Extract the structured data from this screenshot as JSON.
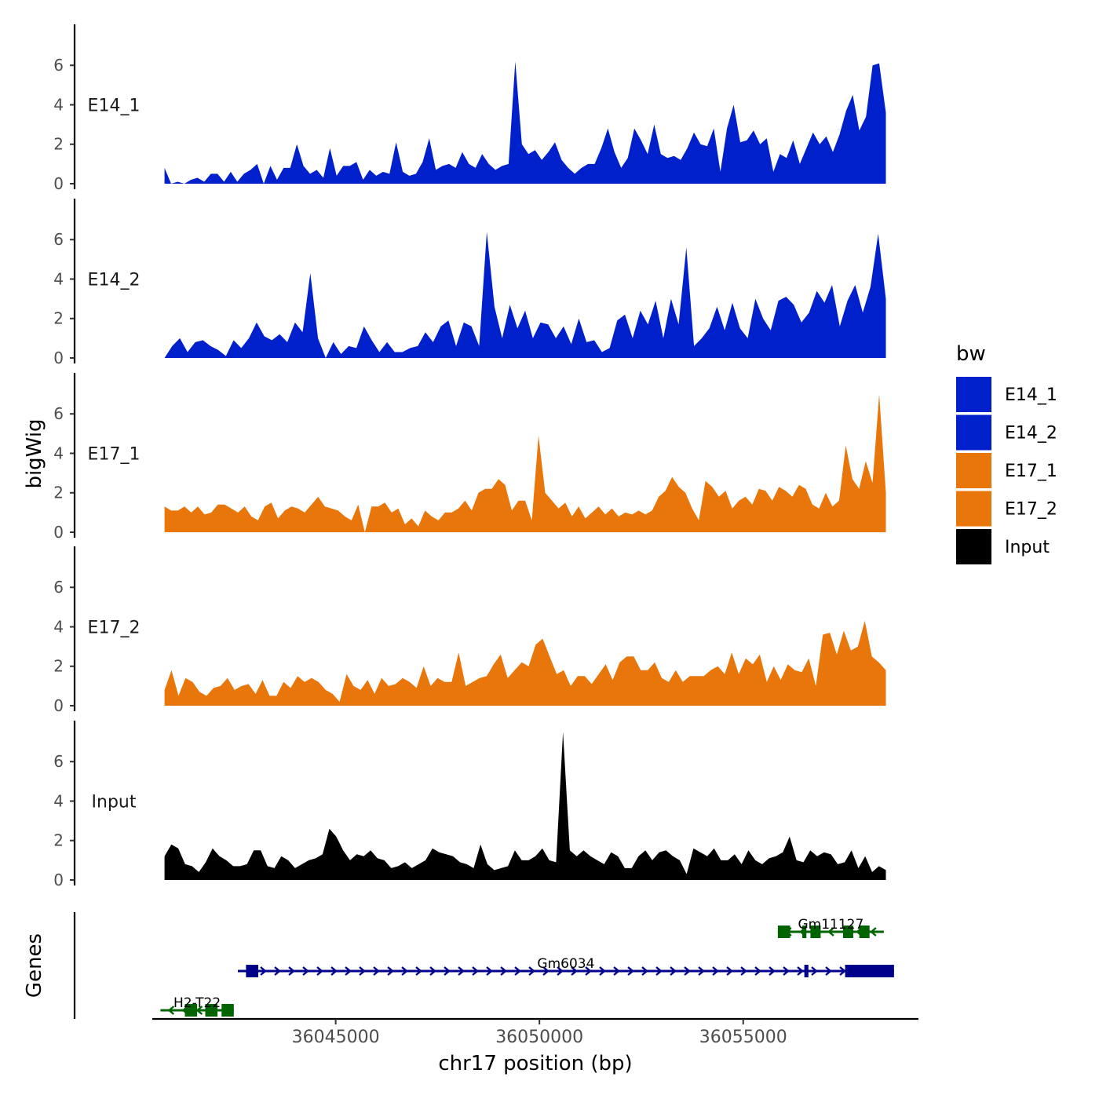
{
  "chart_data": {
    "type": "area",
    "title": "",
    "ylabel": "bigWig",
    "genes_label": "Genes",
    "xlabel": "chr17 position (bp)",
    "chrom": "chr17",
    "xlim": [
      36040500,
      36059300
    ],
    "data_range": [
      36040800,
      36058500
    ],
    "ylim": [
      0,
      7.8
    ],
    "x_ticks": [
      36045000,
      36050000,
      36055000
    ],
    "x_tick_labels": [
      "36045000",
      "36050000",
      "36055000"
    ],
    "y_ticks": [
      0,
      2,
      4,
      6
    ],
    "y_tick_labels": [
      "0",
      "2",
      "4",
      "6"
    ],
    "tracks": [
      {
        "name": "E14_1",
        "color": "#0020cc",
        "values": [
          0.8,
          0,
          0.1,
          0,
          0.2,
          0.3,
          0.1,
          0.5,
          0.5,
          0.1,
          0.6,
          0.1,
          0.5,
          0.7,
          1.0,
          0,
          0.9,
          0.2,
          0.8,
          0.8,
          2.0,
          0.9,
          0.5,
          0.7,
          0.3,
          1.8,
          0.4,
          0.9,
          0.9,
          1.1,
          0.2,
          0.7,
          0.4,
          0.6,
          0.5,
          2.1,
          0.6,
          0.4,
          0.5,
          1.1,
          2.3,
          0.7,
          0.9,
          1.0,
          0.8,
          1.6,
          1.0,
          0.8,
          1.5,
          1.0,
          0.7,
          0.9,
          1.0,
          6.2,
          2.0,
          1.5,
          1.7,
          1.2,
          1.6,
          2.1,
          1.2,
          0.8,
          0.5,
          0.8,
          1.0,
          1.0,
          1.8,
          2.8,
          1.6,
          0.8,
          1.3,
          2.8,
          2.2,
          1.5,
          3.0,
          1.5,
          1.3,
          1.4,
          1.2,
          1.8,
          2.6,
          2.0,
          1.9,
          2.8,
          0.6,
          2.8,
          4.0,
          2.1,
          2.2,
          2.7,
          2.0,
          2.3,
          0.6,
          1.5,
          1.3,
          2.2,
          1.0,
          1.8,
          2.6,
          2.0,
          2.4,
          1.6,
          2.5,
          3.7,
          4.5,
          2.7,
          3.4,
          6.0,
          6.1,
          3.6
        ]
      },
      {
        "name": "E14_2",
        "color": "#0020cc",
        "values": [
          0,
          0.6,
          1.0,
          0.3,
          0.8,
          0.9,
          0.6,
          0.4,
          0.1,
          0.9,
          0.5,
          1.0,
          1.8,
          1.1,
          0.9,
          1.2,
          0.8,
          1.8,
          1.3,
          4.3,
          1.0,
          0,
          0.8,
          0.2,
          0.6,
          0.5,
          1.6,
          0.9,
          0.3,
          0.8,
          0.3,
          0.3,
          0.5,
          0.6,
          1.3,
          0.8,
          1.6,
          1.9,
          0.6,
          1.8,
          1.6,
          0.6,
          6.4,
          2.6,
          1.0,
          2.7,
          1.5,
          2.4,
          1.0,
          1.8,
          1.7,
          1.0,
          1.6,
          0.7,
          2.0,
          0.8,
          0.9,
          0.3,
          0.5,
          1.9,
          2.2,
          1.0,
          2.4,
          1.7,
          2.9,
          1.0,
          3.0,
          1.7,
          5.6,
          0.6,
          1.0,
          1.5,
          2.6,
          1.4,
          2.8,
          1.5,
          1.0,
          3.0,
          2.0,
          1.4,
          2.9,
          3.1,
          2.7,
          1.8,
          2.3,
          3.4,
          2.8,
          3.7,
          1.6,
          2.9,
          3.7,
          2.3,
          3.6,
          6.3,
          3.0
        ]
      },
      {
        "name": "E17_1",
        "color": "#e8760a",
        "values": [
          1.3,
          1.1,
          1.1,
          1.3,
          1.0,
          1.3,
          0.9,
          1.0,
          1.4,
          1.4,
          1.2,
          1.0,
          1.3,
          0.8,
          0.6,
          1.3,
          1.5,
          0.7,
          1.1,
          1.3,
          1.2,
          1.0,
          1.4,
          1.8,
          1.3,
          1.2,
          1.1,
          0.8,
          0.6,
          1.4,
          0,
          1.3,
          1.3,
          1.5,
          1.0,
          1.2,
          0.4,
          0.7,
          0.3,
          1.1,
          0.8,
          0.6,
          1.0,
          1.0,
          1.2,
          1.6,
          1.1,
          2.0,
          2.2,
          2.2,
          2.7,
          2.4,
          1.1,
          1.6,
          1.6,
          0.6,
          4.9,
          2.0,
          1.6,
          1.2,
          1.5,
          0.8,
          1.3,
          0.7,
          1.0,
          1.3,
          0.9,
          1.2,
          0.8,
          1.0,
          0.9,
          1.1,
          0.9,
          1.1,
          1.8,
          2.1,
          2.8,
          2.3,
          2.0,
          1.2,
          0.6,
          2.6,
          2.3,
          1.8,
          2.1,
          1.2,
          1.6,
          1.8,
          1.4,
          2.2,
          2.1,
          1.6,
          2.3,
          2.1,
          1.8,
          2.4,
          2.2,
          1.4,
          1.2,
          2.0,
          1.3,
          1.6,
          4.4,
          2.7,
          2.2,
          3.6,
          2.5,
          7.0,
          2.0
        ]
      },
      {
        "name": "E17_2",
        "color": "#e8760a",
        "values": [
          0.8,
          1.8,
          0.5,
          1.4,
          1.2,
          0.7,
          0.5,
          0.9,
          1.0,
          1.4,
          0.8,
          1.0,
          1.1,
          0.6,
          1.3,
          0.5,
          0.5,
          1.2,
          0.9,
          1.5,
          1.2,
          1.4,
          1.2,
          0.8,
          0.6,
          0.2,
          1.6,
          1.0,
          0.8,
          1.3,
          0.6,
          1.4,
          1.0,
          1.1,
          1.4,
          1.2,
          0.9,
          2.0,
          1.0,
          1.4,
          1.2,
          1.2,
          2.7,
          1.0,
          1.2,
          1.4,
          1.5,
          2.1,
          2.6,
          1.4,
          1.8,
          2.2,
          2.0,
          3.1,
          3.4,
          2.5,
          1.6,
          1.8,
          1.0,
          1.5,
          1.5,
          1.1,
          1.6,
          2.1,
          1.3,
          2.2,
          2.5,
          2.5,
          1.8,
          1.8,
          2.2,
          1.4,
          1.2,
          1.8,
          1.2,
          1.5,
          1.5,
          1.5,
          1.8,
          2.0,
          1.6,
          2.7,
          1.6,
          2.4,
          2.1,
          2.6,
          1.2,
          2.0,
          1.3,
          2.1,
          1.8,
          1.7,
          2.4,
          1.0,
          3.6,
          3.7,
          2.6,
          3.8,
          2.8,
          3.0,
          4.3,
          2.5,
          2.2,
          1.8
        ]
      },
      {
        "name": "Input",
        "color": "#000000",
        "values": [
          1.2,
          1.8,
          1.6,
          0.8,
          0.7,
          0.4,
          0.9,
          1.6,
          1.2,
          1.0,
          0.7,
          0.7,
          0.8,
          1.5,
          1.5,
          0.7,
          0.6,
          1.2,
          1.0,
          0.6,
          0.8,
          1.0,
          1.1,
          1.3,
          2.6,
          2.2,
          1.5,
          1.0,
          1.3,
          1.2,
          1.5,
          1.1,
          1.0,
          0.6,
          0.7,
          0.9,
          0.6,
          0.8,
          1.0,
          1.6,
          1.4,
          1.3,
          1.2,
          0.9,
          0.8,
          0.6,
          1.8,
          0.8,
          0.5,
          0.6,
          0.7,
          1.5,
          1.0,
          1.0,
          1.2,
          1.6,
          1.0,
          0.9,
          7.5,
          1.5,
          1.2,
          1.5,
          1.2,
          1.0,
          0.8,
          1.4,
          1.2,
          0.6,
          0.6,
          1.2,
          1.5,
          1.0,
          1.4,
          1.5,
          1.2,
          1.0,
          0.3,
          1.6,
          1.4,
          1.2,
          1.6,
          1.0,
          1.0,
          1.3,
          0.8,
          1.5,
          1.0,
          0.8,
          1.1,
          1.2,
          1.4,
          2.2,
          1.0,
          0.9,
          1.5,
          1.2,
          1.4,
          1.3,
          0.8,
          0.9,
          1.5,
          0.6,
          1.2,
          0.4,
          0.7,
          0.5
        ]
      }
    ],
    "legend": {
      "title": "bw",
      "position": "right",
      "entries": [
        {
          "label": "E14_1",
          "color": "#0020cc"
        },
        {
          "label": "E14_2",
          "color": "#0020cc"
        },
        {
          "label": "E17_1",
          "color": "#e8760a"
        },
        {
          "label": "E17_2",
          "color": "#e8760a"
        },
        {
          "label": "Input",
          "color": "#000000"
        }
      ]
    },
    "genes": [
      {
        "name": "Gm11127",
        "strand": "-",
        "color": "#006400",
        "start": 36055850,
        "end": 36058450,
        "exons": [
          [
            36055850,
            36056150
          ],
          [
            36056450,
            36056550
          ],
          [
            36056650,
            36056900
          ],
          [
            36057450,
            36057700
          ],
          [
            36057850,
            36058100
          ]
        ]
      },
      {
        "name": "Gm6034",
        "strand": "+",
        "color": "#00008b",
        "start": 36042600,
        "end": 36058700,
        "exons": [
          [
            36042800,
            36043100
          ],
          [
            36056500,
            36056600
          ],
          [
            36057500,
            36058700
          ]
        ]
      },
      {
        "name": "H2-T22",
        "strand": "-",
        "color": "#006400",
        "start": 36040700,
        "end": 36042500,
        "exons": [
          [
            36041300,
            36041600
          ],
          [
            36041800,
            36042100
          ],
          [
            36042200,
            36042500
          ]
        ]
      }
    ]
  }
}
